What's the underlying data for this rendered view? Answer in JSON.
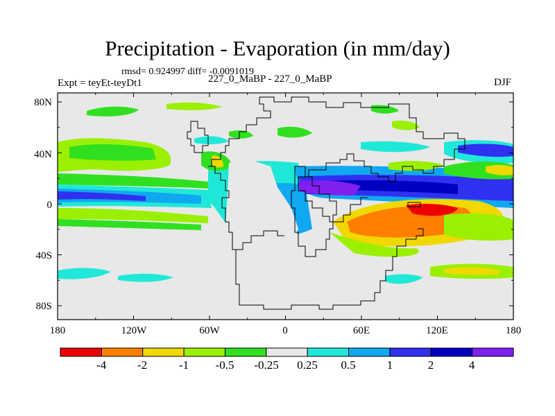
{
  "title": "Precipitation - Evaporation (in mm/day)",
  "stats": "rmsd= 0.924997 diff= -0.0091019",
  "experiment": "Expt = teyEt-teyDt1",
  "panel_center": "227_0_MaBP - 227_0_MaBP",
  "season": "DJF",
  "lat_ticks": [
    "80N",
    "40N",
    "0",
    "40S",
    "80S"
  ],
  "lon_ticks": [
    "180",
    "120W",
    "60W",
    "0",
    "60E",
    "120E",
    "180"
  ],
  "colorbar": {
    "colors": [
      "#ee0000",
      "#ff7f00",
      "#f0d800",
      "#9af000",
      "#30e020",
      "#e8e8e8",
      "#20e8d8",
      "#10a8f0",
      "#3030f0",
      "#0000c0",
      "#8020f0"
    ],
    "labels": [
      "-4",
      "-2",
      "-1",
      "-0.5",
      "-0.25",
      "0.25",
      "0.5",
      "1",
      "2",
      "4"
    ]
  },
  "colors": {
    "background": "#e8e8e8",
    "coastline": "#000000"
  }
}
